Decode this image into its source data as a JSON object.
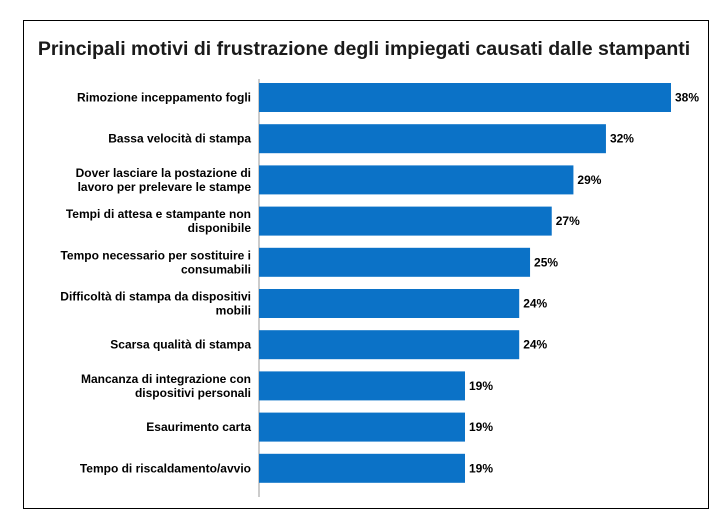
{
  "chart_data": {
    "type": "bar",
    "orientation": "horizontal",
    "title": "Principali motivi di frustrazione degli impiegati causati dalle stampanti",
    "categories": [
      [
        "Rimozione inceppamento fogli"
      ],
      [
        "Bassa  velocità di stampa"
      ],
      [
        "Dover lasciare la postazione di",
        "lavoro per prelevare le stampe"
      ],
      [
        "Tempi di attesa e stampante non",
        "disponibile"
      ],
      [
        "Tempo necessario per sostituire i",
        "consumabili"
      ],
      [
        "Difficoltà di stampa da dispositivi",
        "mobili"
      ],
      [
        "Scarsa qualità di stampa"
      ],
      [
        "Mancanza di integrazione con",
        "dispositivi personali"
      ],
      [
        "Esaurimento carta"
      ],
      [
        "Tempo di riscaldamento/avvio"
      ]
    ],
    "values": [
      38,
      32,
      29,
      27,
      25,
      24,
      24,
      19,
      19,
      19
    ],
    "value_labels": [
      "38%",
      "32%",
      "29%",
      "27%",
      "25%",
      "24%",
      "24%",
      "19%",
      "19%",
      "19%"
    ],
    "xlim": [
      0,
      38
    ],
    "bar_color": "#0b72c7",
    "grid": false,
    "legend": "none"
  }
}
